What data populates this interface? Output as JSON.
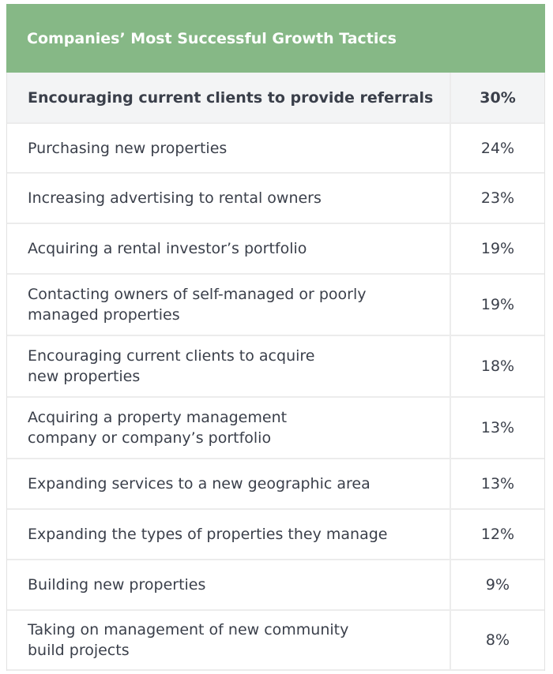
{
  "table": {
    "title": "Companies’ Most Successful Growth Tactics",
    "rows": [
      [
        "Encouraging current clients to provide referrals",
        "30%"
      ],
      [
        "Purchasing new properties",
        "24%"
      ],
      [
        "Increasing advertising to rental owners",
        "23%"
      ],
      [
        "Acquiring a rental investor’s portfolio",
        "19%"
      ],
      [
        "Contacting owners of self-managed or poorly\nmanaged properties",
        "19%"
      ],
      [
        "Encouraging current clients to acquire\nnew properties",
        "18%"
      ],
      [
        "Acquiring a property management\ncompany or company’s portfolio",
        "13%"
      ],
      [
        "Expanding services to a new geographic area",
        "13%"
      ],
      [
        "Expanding the types of properties they manage",
        "12%"
      ],
      [
        "Building new properties",
        "9%"
      ],
      [
        "Taking on management of new community\nbuild projects",
        "8%"
      ]
    ]
  }
}
